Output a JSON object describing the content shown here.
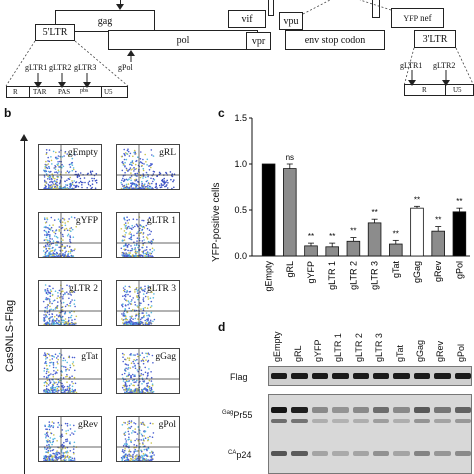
{
  "panel_a": {
    "genes": {
      "ltr5": "5'LTR",
      "gag": "gag",
      "pol": "pol",
      "vif": "vif",
      "vpr": "vpr",
      "vpu": "vpu",
      "env": "env stop codon",
      "yfp": "YFP",
      "nef": "nef",
      "ltr3": "3'LTR"
    },
    "guides_top": [
      "gLTR1",
      "gLTR2",
      "gLTR3"
    ],
    "guides_right": [
      "gLTR1",
      "gLTR2"
    ],
    "gpol": "gPol",
    "ltr_regions_left": [
      "R",
      "TAR",
      "PAS",
      "pbs",
      "U5"
    ],
    "ltr_regions_right": [
      "R",
      "U5"
    ]
  },
  "panel_b": {
    "letter": "b",
    "y_axis_title": "Cas9NLS-Flag",
    "plots": [
      "gEmpty",
      "gRL",
      "gYFP",
      "gLTR 1",
      "gLTR 2",
      "gLTR 3",
      "gTat",
      "gGag",
      "gRev",
      "gPol"
    ]
  },
  "panel_c": {
    "letter": "c",
    "chart_data": {
      "type": "bar",
      "ylabel": "YFP-positive cells",
      "ylim": [
        0,
        1.5
      ],
      "yticks": [
        "0.0",
        "0.5",
        "1.0",
        "1.5"
      ],
      "categories": [
        "gEmpty",
        "gRL",
        "gYFP",
        "gLTR 1",
        "gLTR 2",
        "gLTR 3",
        "gTat",
        "gGag",
        "gRev",
        "gPol"
      ],
      "values": [
        1.0,
        0.95,
        0.11,
        0.1,
        0.16,
        0.36,
        0.13,
        0.52,
        0.27,
        0.48
      ],
      "errors": [
        0.0,
        0.05,
        0.03,
        0.04,
        0.04,
        0.04,
        0.04,
        0.02,
        0.05,
        0.04
      ],
      "significance": [
        "",
        "ns",
        "**",
        "**",
        "**",
        "**",
        "**",
        "**",
        "**",
        "**"
      ],
      "bar_colors": [
        "#000000",
        "#8c8c8c",
        "#8c8c8c",
        "#8c8c8c",
        "#8c8c8c",
        "#8c8c8c",
        "#8c8c8c",
        "#ffffff",
        "#8c8c8c",
        "#000000"
      ]
    }
  },
  "panel_d": {
    "letter": "d",
    "lanes": [
      "gEmpty",
      "gRL",
      "gYFP",
      "gLTR 1",
      "gLTR 2",
      "gLTR 3",
      "gTat",
      "gGag",
      "gRev",
      "gPol"
    ],
    "blot1_label": "Flag",
    "blot2_label_top_sup": "Gag",
    "blot2_label_top": "Pr55",
    "blot2_label_bottom_sup": "CA",
    "blot2_label_bottom": "p24"
  }
}
